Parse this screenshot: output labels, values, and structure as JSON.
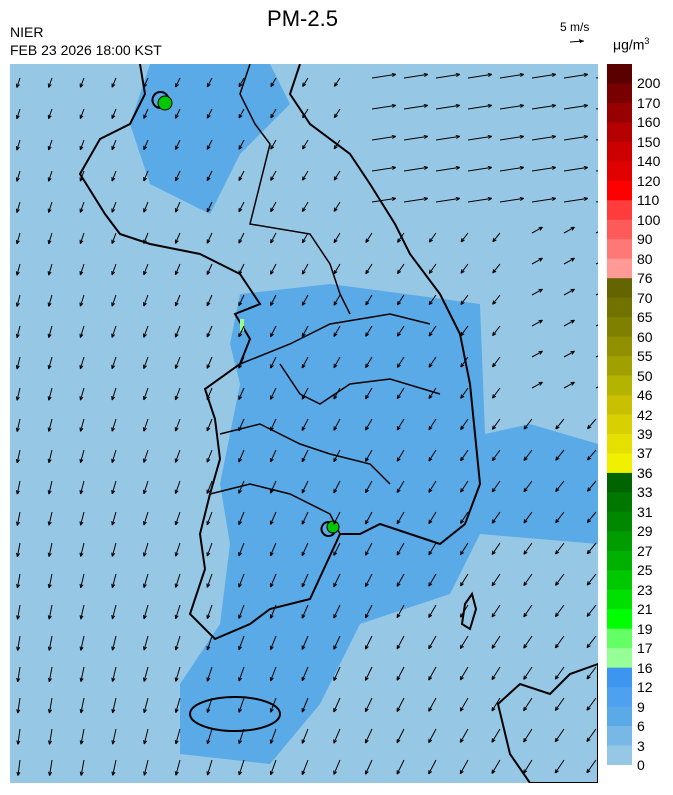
{
  "header": {
    "title": "PM-2.5",
    "agency": "NIER",
    "datetime": "FEB 23 2026 18:00 KST"
  },
  "wind_scale": {
    "label": "5 m/s",
    "icon": "arrow-right-icon"
  },
  "colorbar": {
    "units_base": "μg/m",
    "units_exp": "3",
    "labels": [
      "200",
      "170",
      "160",
      "150",
      "140",
      "120",
      "110",
      "100",
      "90",
      "80",
      "76",
      "70",
      "65",
      "60",
      "55",
      "50",
      "46",
      "42",
      "39",
      "37",
      "36",
      "33",
      "31",
      "29",
      "27",
      "25",
      "23",
      "21",
      "19",
      "17",
      "16",
      "12",
      "9",
      "6",
      "3",
      "0"
    ],
    "colors": [
      "#5a0000",
      "#780000",
      "#960000",
      "#b40000",
      "#cc0000",
      "#e00000",
      "#ff0000",
      "#ff3c3c",
      "#ff5a5a",
      "#ff7878",
      "#ff9a96",
      "#646400",
      "#727200",
      "#808000",
      "#909000",
      "#a0a000",
      "#b4b400",
      "#c8c000",
      "#d8d000",
      "#e6e000",
      "#f0f000",
      "#006400",
      "#007800",
      "#008800",
      "#009c00",
      "#00b000",
      "#00c800",
      "#00e000",
      "#00ff00",
      "#64ff64",
      "#96ff96",
      "#3c96f0",
      "#4ea0f0",
      "#5aaae8",
      "#78b8e6",
      "#96c8e6"
    ]
  },
  "map": {
    "background_color": "#96c8e6",
    "elevated_color": "#5aaae8",
    "hotspot_color": "#00c800"
  }
}
